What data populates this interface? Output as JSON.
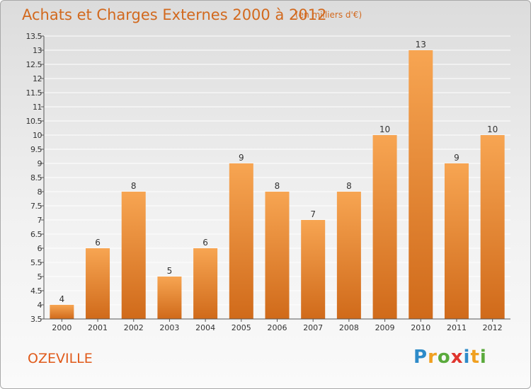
{
  "title": "Achats et Charges Externes 2000 à 2012",
  "subtitle": "(en milliers d'€)",
  "commune": "OZEVILLE",
  "logo": {
    "text": "Proxiti",
    "letters": [
      "P",
      "r",
      "o",
      "x",
      "i",
      "t",
      "i"
    ],
    "colors": [
      "#2e8bc9",
      "#f0a020",
      "#5aaa3c",
      "#e0352e",
      "#2e8bc9",
      "#f0a020",
      "#5aaa3c"
    ]
  },
  "colors": {
    "title": "#d2691e",
    "bar_top": "#f7a552",
    "bar_bottom": "#d06a1a",
    "grid": "#ffffff",
    "axis": "#555555"
  },
  "chart_data": {
    "type": "bar",
    "categories": [
      "2000",
      "2001",
      "2002",
      "2003",
      "2004",
      "2005",
      "2006",
      "2007",
      "2008",
      "2009",
      "2010",
      "2011",
      "2012"
    ],
    "values": [
      4,
      6,
      8,
      5,
      6,
      9,
      8,
      7,
      8,
      10,
      13,
      9,
      10
    ],
    "data_labels": [
      "4",
      "6",
      "8",
      "5",
      "6",
      "9",
      "8",
      "7",
      "8",
      "10",
      "13",
      "9",
      "10"
    ],
    "ylim": [
      3.5,
      13.5
    ],
    "yticks": [
      3.5,
      4,
      4.5,
      5,
      5.5,
      6,
      6.5,
      7,
      7.5,
      8,
      8.5,
      9,
      9.5,
      10,
      10.5,
      11,
      11.5,
      12,
      12.5,
      13,
      13.5
    ],
    "ytick_labels": [
      "3.5",
      "4",
      "4.5",
      "5",
      "5.5",
      "6",
      "6.5",
      "7",
      "7.5",
      "8",
      "8.5",
      "9",
      "9.5",
      "10",
      "10.5",
      "11",
      "11.5",
      "12",
      "12.5",
      "13",
      "13.5"
    ],
    "grid": true,
    "xlabel": "",
    "ylabel": ""
  }
}
